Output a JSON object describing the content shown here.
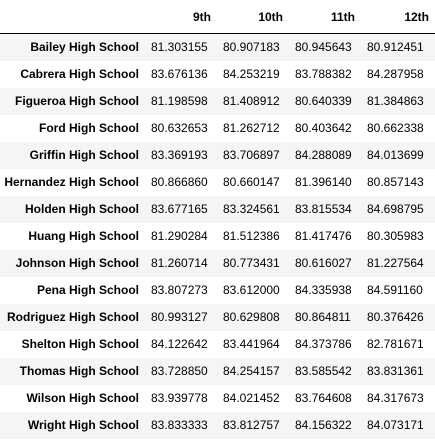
{
  "table": {
    "corner_label": "",
    "columns": [
      "9th",
      "10th",
      "11th",
      "12th"
    ],
    "rows": [
      {
        "school": "Bailey High School",
        "values": [
          "81.303155",
          "80.907183",
          "80.945643",
          "80.912451"
        ]
      },
      {
        "school": "Cabrera High School",
        "values": [
          "83.676136",
          "84.253219",
          "83.788382",
          "84.287958"
        ]
      },
      {
        "school": "Figueroa High School",
        "values": [
          "81.198598",
          "81.408912",
          "80.640339",
          "81.384863"
        ]
      },
      {
        "school": "Ford High School",
        "values": [
          "80.632653",
          "81.262712",
          "80.403642",
          "80.662338"
        ]
      },
      {
        "school": "Griffin High School",
        "values": [
          "83.369193",
          "83.706897",
          "84.288089",
          "84.013699"
        ]
      },
      {
        "school": "Hernandez High School",
        "values": [
          "80.866860",
          "80.660147",
          "81.396140",
          "80.857143"
        ]
      },
      {
        "school": "Holden High School",
        "values": [
          "83.677165",
          "83.324561",
          "83.815534",
          "84.698795"
        ]
      },
      {
        "school": "Huang High School",
        "values": [
          "81.290284",
          "81.512386",
          "81.417476",
          "80.305983"
        ]
      },
      {
        "school": "Johnson High School",
        "values": [
          "81.260714",
          "80.773431",
          "80.616027",
          "81.227564"
        ]
      },
      {
        "school": "Pena High School",
        "values": [
          "83.807273",
          "83.612000",
          "84.335938",
          "84.591160"
        ]
      },
      {
        "school": "Rodriguez High School",
        "values": [
          "80.993127",
          "80.629808",
          "80.864811",
          "80.376426"
        ]
      },
      {
        "school": "Shelton High School",
        "values": [
          "84.122642",
          "83.441964",
          "84.373786",
          "82.781671"
        ]
      },
      {
        "school": "Thomas High School",
        "values": [
          "83.728850",
          "84.254157",
          "83.585542",
          "83.831361"
        ]
      },
      {
        "school": "Wilson High School",
        "values": [
          "83.939778",
          "84.021452",
          "83.764608",
          "84.317673"
        ]
      },
      {
        "school": "Wright High School",
        "values": [
          "83.833333",
          "83.812757",
          "84.156322",
          "84.073171"
        ]
      }
    ]
  }
}
